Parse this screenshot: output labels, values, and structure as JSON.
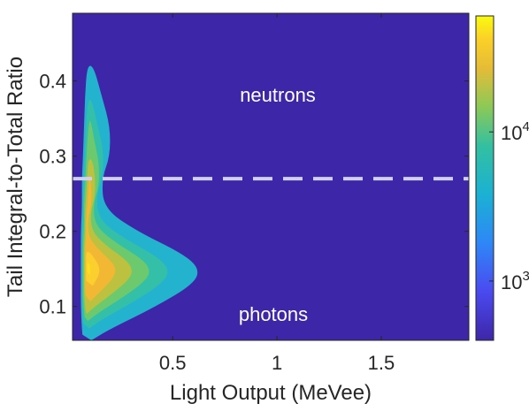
{
  "chart_data": {
    "type": "heatmap",
    "title": "",
    "xlabel": "Light Output (MeVee)",
    "ylabel": "Tail Integral-to-Total Ratio",
    "xlim": [
      0.02,
      1.92
    ],
    "ylim": [
      0.055,
      0.49
    ],
    "xticks": [
      0.5,
      1,
      1.5
    ],
    "xtick_labels": [
      "0.5",
      "1",
      "1.5"
    ],
    "yticks": [
      0.1,
      0.2,
      0.3,
      0.4
    ],
    "ytick_labels": [
      "0.1",
      "0.2",
      "0.3",
      "0.4"
    ],
    "colorbar": {
      "scale": "log",
      "range": [
        400,
        60000
      ],
      "ticks": [
        1000,
        10000
      ],
      "tick_labels": [
        "10^3",
        "10^4"
      ],
      "colormap": "parula"
    },
    "background_color": "#3e26a8",
    "threshold_line": {
      "y": 0.27,
      "style": "dashed",
      "color": "#d0cff0"
    },
    "annotations": [
      {
        "text": "neutrons",
        "x": 1.0,
        "y": 0.38
      },
      {
        "text": "photons",
        "x": 1.0,
        "y": 0.09
      }
    ],
    "contour_levels": [
      {
        "level": 1000,
        "color": "#24b3cf"
      },
      {
        "level": 2500,
        "color": "#34c0a8"
      },
      {
        "level": 5000,
        "color": "#6cc96d"
      },
      {
        "level": 10000,
        "color": "#bcc140"
      },
      {
        "level": 20000,
        "color": "#f2b833"
      },
      {
        "level": 40000,
        "color": "#fbcf2e"
      },
      {
        "level": 60000,
        "color": "#f9e21c"
      }
    ],
    "ridge_profile": [
      {
        "y": 0.055,
        "x_left": 0.07,
        "x_right": 0.11
      },
      {
        "y": 0.07,
        "x_left": 0.065,
        "x_right": 0.2
      },
      {
        "y": 0.1,
        "x_left": 0.06,
        "x_right": 0.42
      },
      {
        "y": 0.13,
        "x_left": 0.06,
        "x_right": 0.6
      },
      {
        "y": 0.15,
        "x_left": 0.06,
        "x_right": 0.63
      },
      {
        "y": 0.17,
        "x_left": 0.06,
        "x_right": 0.55
      },
      {
        "y": 0.2,
        "x_left": 0.06,
        "x_right": 0.33
      },
      {
        "y": 0.23,
        "x_left": 0.065,
        "x_right": 0.17
      },
      {
        "y": 0.27,
        "x_left": 0.065,
        "x_right": 0.16
      },
      {
        "y": 0.3,
        "x_left": 0.07,
        "x_right": 0.2
      },
      {
        "y": 0.34,
        "x_left": 0.075,
        "x_right": 0.2
      },
      {
        "y": 0.38,
        "x_left": 0.08,
        "x_right": 0.16
      },
      {
        "y": 0.42,
        "x_left": 0.09,
        "x_right": 0.12
      }
    ]
  }
}
